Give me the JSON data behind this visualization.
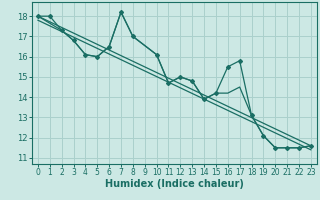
{
  "title": "",
  "xlabel": "Humidex (Indice chaleur)",
  "bg_color": "#cce8e4",
  "grid_color": "#aad0cc",
  "line_color": "#1a6e64",
  "xlim": [
    -0.5,
    23.5
  ],
  "ylim": [
    10.7,
    18.7
  ],
  "yticks": [
    11,
    12,
    13,
    14,
    15,
    16,
    17,
    18
  ],
  "xticks": [
    0,
    1,
    2,
    3,
    4,
    5,
    6,
    7,
    8,
    9,
    10,
    11,
    12,
    13,
    14,
    15,
    16,
    17,
    18,
    19,
    20,
    21,
    22,
    23
  ],
  "series": [
    {
      "x": [
        0,
        1,
        2,
        3,
        4,
        5,
        6,
        7,
        8,
        10,
        11,
        12,
        13,
        14,
        15,
        16,
        17,
        18,
        19,
        20,
        21,
        22,
        23
      ],
      "y": [
        18,
        18,
        17.3,
        16.8,
        16.1,
        16.0,
        16.5,
        18.2,
        17.0,
        16.1,
        14.7,
        15.0,
        14.8,
        13.9,
        14.2,
        15.5,
        15.8,
        13.1,
        12.1,
        11.5,
        11.5,
        11.5,
        11.6
      ],
      "has_markers": true
    },
    {
      "x": [
        0,
        2,
        3,
        4,
        5,
        6,
        7,
        8,
        10,
        11,
        12,
        13,
        14,
        15,
        16,
        17,
        18,
        19,
        20,
        21,
        22,
        23
      ],
      "y": [
        18,
        17.3,
        16.8,
        16.1,
        16.0,
        16.5,
        18.2,
        17.0,
        16.1,
        14.7,
        15.0,
        14.8,
        13.9,
        14.2,
        14.2,
        14.5,
        13.1,
        12.1,
        11.5,
        11.5,
        11.5,
        11.6
      ],
      "has_markers": false
    },
    {
      "x": [
        0,
        23
      ],
      "y": [
        18,
        11.6
      ],
      "has_markers": false
    },
    {
      "x": [
        0,
        23
      ],
      "y": [
        17.8,
        11.4
      ],
      "has_markers": false
    }
  ]
}
